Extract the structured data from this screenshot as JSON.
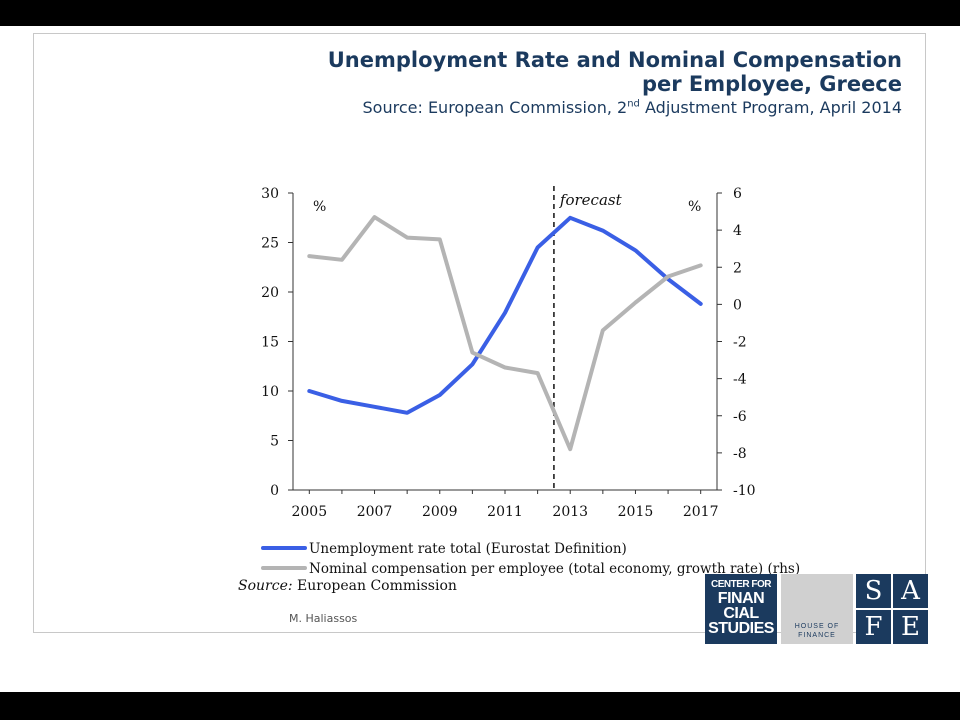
{
  "slide": {
    "title_line1": "Unemployment Rate and Nominal Compensation",
    "title_line2": "per Employee, Greece",
    "subtitle_pre": "Source: European Commission, 2",
    "subtitle_sup": "nd",
    "subtitle_post": " Adjustment Program, April 2014",
    "source_label": "Source:",
    "source_text": " European Commission",
    "author": "M. Haliassos"
  },
  "logos": {
    "cfs": [
      "CENTER FOR",
      "FINAN",
      "CIAL",
      "STUDIES"
    ],
    "hof": [
      "HOUSE OF",
      "FINANCE"
    ],
    "safe": [
      "S",
      "A",
      "F",
      "E"
    ],
    "cfs_color": "#1b3a5e",
    "hof_color": "#d0d0d0"
  },
  "chart_data": {
    "type": "line",
    "x": [
      2005,
      2006,
      2007,
      2008,
      2009,
      2010,
      2011,
      2012,
      2013,
      2014,
      2015,
      2016,
      2017
    ],
    "xticks": [
      2005,
      2007,
      2009,
      2011,
      2013,
      2015,
      2017
    ],
    "ylim_left": [
      0,
      30
    ],
    "yticks_left": [
      0,
      5,
      10,
      15,
      20,
      25,
      30
    ],
    "ylim_right": [
      -10,
      6
    ],
    "yticks_right": [
      -10,
      -8,
      -6,
      -4,
      -2,
      0,
      2,
      4,
      6
    ],
    "left_unit": "%",
    "right_unit": "%",
    "forecast_x": 2012.5,
    "forecast_label": "forecast",
    "series": [
      {
        "name": "Unemployment rate total (Eurostat Definition)",
        "axis": "left",
        "color": "#3a5fe5",
        "values": [
          10.0,
          9.0,
          8.4,
          7.8,
          9.6,
          12.7,
          17.9,
          24.5,
          27.5,
          26.2,
          24.2,
          21.3,
          18.8
        ]
      },
      {
        "name": "Nominal compensation per employee (total economy, growth rate) (rhs)",
        "axis": "right",
        "color": "#b4b4b4",
        "values": [
          2.6,
          2.4,
          4.7,
          3.6,
          3.5,
          -2.6,
          -3.4,
          -3.7,
          -7.8,
          -1.4,
          0.1,
          1.5,
          2.1
        ]
      }
    ],
    "grid": false,
    "legend_position": "bottom-left"
  }
}
